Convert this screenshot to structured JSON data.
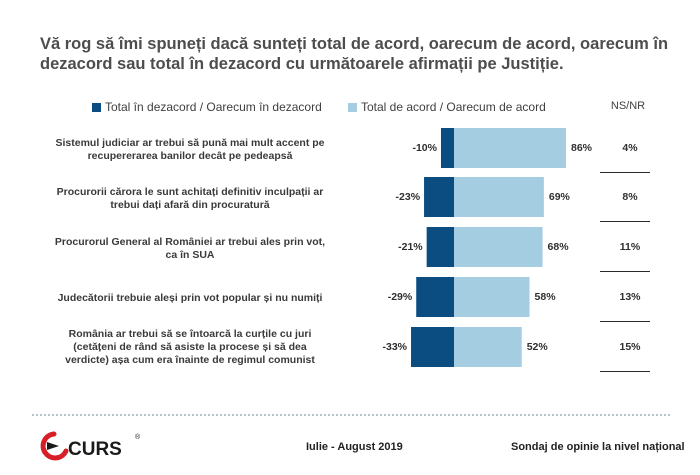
{
  "title": "Vă rog să îmi spuneți dacă sunteți total de acord, oarecum de acord, oarecum în dezacord sau total în dezacord cu următoarele afirmații pe Justiție.",
  "legend": {
    "negative": "Total în dezacord / Oarecum în dezacord",
    "positive": "Total de acord / Oarecum de acord",
    "nsnr": "NS/NR"
  },
  "colors": {
    "negative": "#0b4d80",
    "positive": "#a4cde2",
    "accent_red": "#d61f26"
  },
  "chart_data": {
    "type": "bar",
    "orientation": "horizontal-diverging",
    "categories": [
      "Sistemul judiciar ar trebui să pună mai mult accent pe recupererarea banilor decât pe pedeapsă",
      "Procurorii cărora le sunt achitați definitiv inculpații ar trebui dați afară din procuratură",
      "Procurorul General al României ar trebui ales prin vot, ca în SUA",
      "Judecătorii trebuie aleși prin vot popular și nu numiți",
      "România ar trebui să se întoarcă la curțile cu juri (cetățeni de rând să asiste la procese și să dea verdicte) așa cum era înainte de regimul comunist"
    ],
    "series": [
      {
        "name": "Total în dezacord / Oarecum în dezacord",
        "values": [
          -10,
          -23,
          -21,
          -29,
          -33
        ],
        "labels": [
          "-10%",
          "-23%",
          "-21%",
          "-29%",
          "-33%"
        ]
      },
      {
        "name": "Total de acord / Oarecum de acord",
        "values": [
          86,
          69,
          68,
          58,
          52
        ],
        "labels": [
          "86%",
          "69%",
          "68%",
          "58%",
          "52%"
        ]
      }
    ],
    "nsnr": {
      "name": "NS/NR",
      "values": [
        4,
        8,
        11,
        13,
        15
      ],
      "labels": [
        "4%",
        "8%",
        "11%",
        "13%",
        "15%"
      ]
    },
    "legend_position": "top",
    "grid": false
  },
  "footer": {
    "logo": "CURS",
    "registered": "®",
    "date": "Iulie - August 2019",
    "survey": "Sondaj de opinie la nivel național"
  }
}
